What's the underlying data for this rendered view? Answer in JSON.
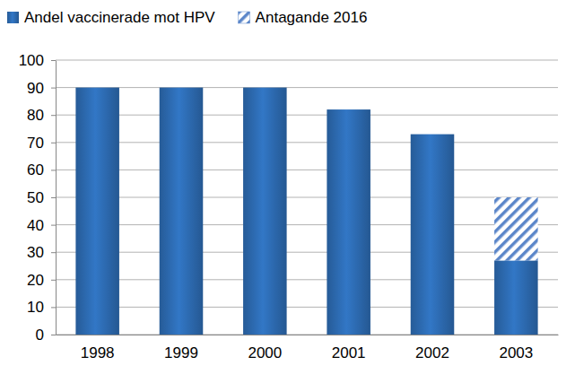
{
  "chart_data": {
    "type": "bar",
    "categories": [
      "1998",
      "1999",
      "2000",
      "2001",
      "2002",
      "2003"
    ],
    "series": [
      {
        "name": "Andel vaccinerade mot HPV",
        "color": "#2e6db5",
        "values": [
          90,
          90,
          90,
          82,
          73,
          27
        ]
      },
      {
        "name": "Antagande 2016",
        "color": "#5b86c9",
        "values": [
          null,
          null,
          null,
          null,
          null,
          23
        ]
      }
    ],
    "stacked": true,
    "ylim": [
      0,
      100
    ],
    "yticks": [
      0,
      10,
      20,
      30,
      40,
      50,
      60,
      70,
      80,
      90,
      100
    ],
    "grid": true,
    "legend": "top"
  }
}
